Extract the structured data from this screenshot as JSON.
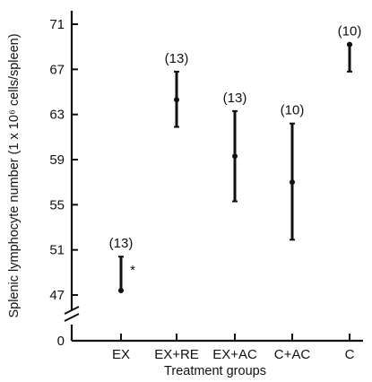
{
  "chart_data": {
    "type": "scatter",
    "subtype": "mean-with-range",
    "xlabel": "Treatment groups",
    "ylabel": "Splenic lymphocyte number (1 x 10⁶ cells/spleen)",
    "y_ticks": [
      "47",
      "51",
      "55",
      "59",
      "63",
      "67",
      "71"
    ],
    "y_zero_label": "0",
    "y_axis_break": true,
    "ylim": [
      45,
      72
    ],
    "grid": false,
    "legend": "none",
    "groups": [
      {
        "label": "EX",
        "n_label": "(13)",
        "mean": 47.4,
        "low": 47.4,
        "high": 50.4,
        "marker": "*"
      },
      {
        "label": "EX+RE",
        "n_label": "(13)",
        "mean": 64.3,
        "low": 61.9,
        "high": 66.8,
        "marker": ""
      },
      {
        "label": "EX+AC",
        "n_label": "(13)",
        "mean": 59.3,
        "low": 55.3,
        "high": 63.3,
        "marker": ""
      },
      {
        "label": "C+AC",
        "n_label": "(10)",
        "mean": 57.0,
        "low": 51.9,
        "high": 62.2,
        "marker": ""
      },
      {
        "label": "C",
        "n_label": "(10)",
        "mean": 69.2,
        "low": 66.8,
        "high": 69.2,
        "marker": ""
      }
    ]
  }
}
